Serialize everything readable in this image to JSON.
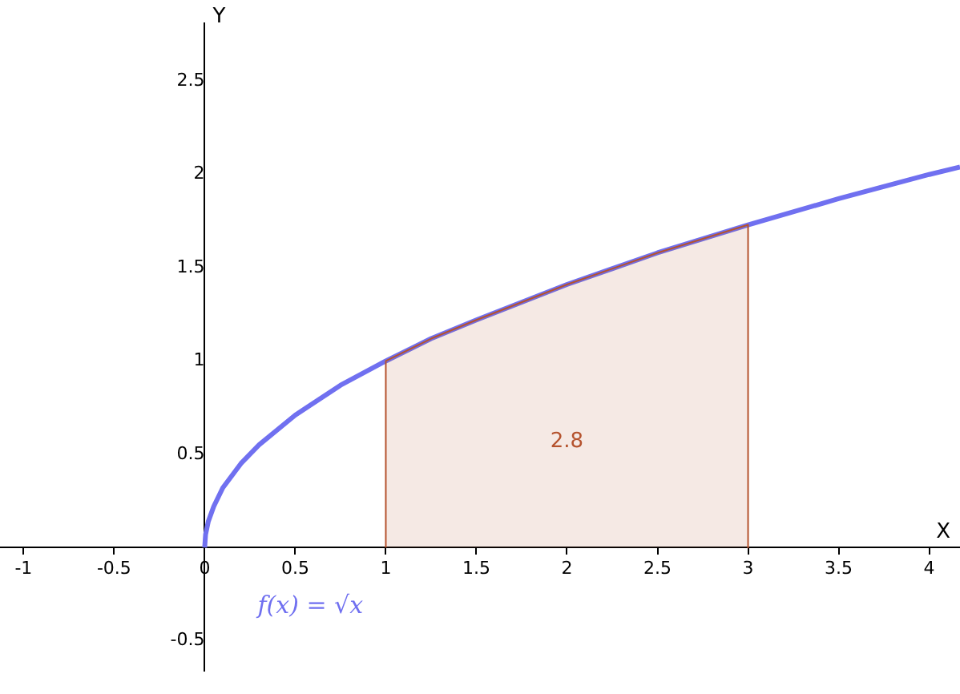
{
  "chart_data": {
    "type": "line",
    "xlabel": "X",
    "ylabel": "Y",
    "xlim": [
      -1.13,
      4.17
    ],
    "ylim": [
      -0.66,
      2.81
    ],
    "xticks": [
      -1,
      -0.5,
      0,
      0.5,
      1,
      1.5,
      2,
      2.5,
      3,
      3.5,
      4
    ],
    "yticks": [
      -0.5,
      0.5,
      1,
      1.5,
      2,
      2.5
    ],
    "grid": false,
    "legend": false,
    "marker": "none",
    "series": [
      {
        "type": "area",
        "color": "#b5532e",
        "x": [
          1,
          1,
          1.25,
          1.5,
          2,
          2.5,
          3,
          3
        ],
        "values": [
          0,
          1,
          1.12,
          1.22,
          1.41,
          1.58,
          1.73,
          0
        ]
      },
      {
        "color": "#7070f0",
        "x": [
          0,
          0.005,
          0.02,
          0.05,
          0.1,
          0.2,
          0.3,
          0.5,
          0.75,
          1,
          1.25,
          1.5,
          2,
          2.5,
          3,
          3.5,
          4,
          4.17
        ],
        "values": [
          0,
          0.07,
          0.14,
          0.22,
          0.32,
          0.45,
          0.55,
          0.71,
          0.87,
          1,
          1.12,
          1.22,
          1.41,
          1.58,
          1.73,
          1.87,
          2,
          2.04
        ]
      }
    ],
    "annotations": [
      "2.8",
      "f(x) = √x"
    ]
  }
}
